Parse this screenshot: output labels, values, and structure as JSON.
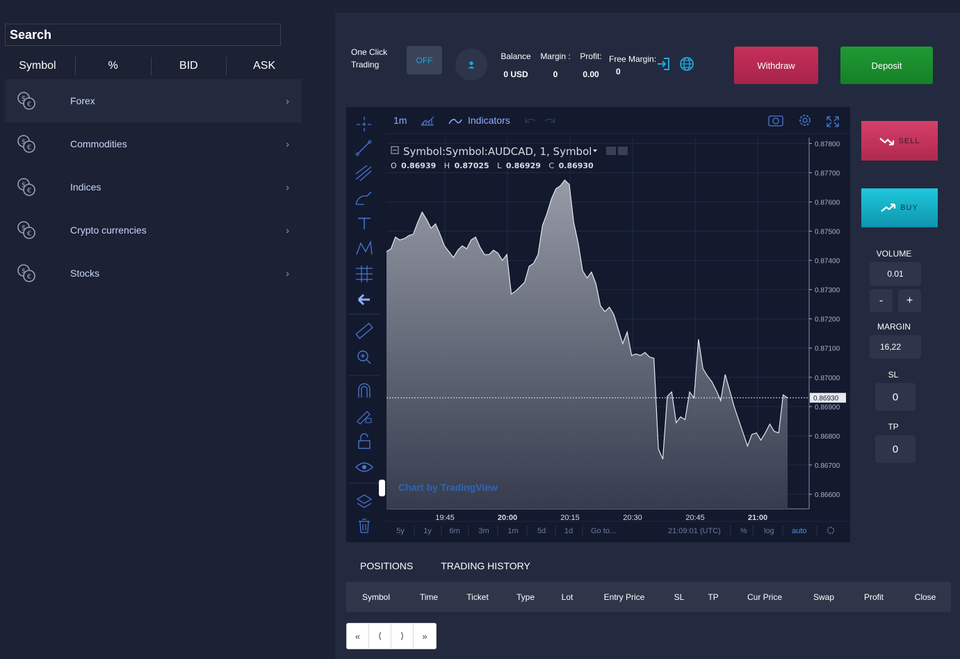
{
  "sidebar": {
    "search_placeholder": "Search",
    "columns": [
      "Symbol",
      "%",
      "BID",
      "ASK"
    ],
    "categories": [
      {
        "label": "Forex",
        "active": true
      },
      {
        "label": "Commodities",
        "active": false
      },
      {
        "label": "Indices",
        "active": false
      },
      {
        "label": "Crypto currencies",
        "active": false
      },
      {
        "label": "Stocks",
        "active": false
      }
    ],
    "chevron": "›"
  },
  "header": {
    "one_click_label": "One Click Trading",
    "toggle_label": "OFF",
    "balance_label": "Balance",
    "balance_value": "0 USD",
    "margin_label": "Margin :",
    "margin_value": "0",
    "profit_label": "Profit:",
    "profit_value": "0.00",
    "free_margin_label": "Free Margin:",
    "free_margin_value": "0",
    "withdraw_label": "Withdraw",
    "deposit_label": "Deposit"
  },
  "chart_toolbar": {
    "interval": "1m",
    "indicators_label": "Indicators"
  },
  "chart_legend": {
    "title": "Symbol:Symbol:AUDCAD, 1, Symbol",
    "o_label": "O",
    "o_value": "0.86939",
    "h_label": "H",
    "h_value": "0.87025",
    "l_label": "L",
    "l_value": "0.86929",
    "c_label": "C",
    "c_value": "0.86930",
    "watermark": "Chart by TradingView"
  },
  "chart_bottom": {
    "ranges": [
      "5y",
      "1y",
      "6m",
      "3m",
      "1m",
      "5d",
      "1d"
    ],
    "goto": "Go to...",
    "clock": "21:09:01 (UTC)",
    "percent": "%",
    "log": "log",
    "auto": "auto"
  },
  "chart_data": {
    "type": "area",
    "title": "Symbol:Symbol:AUDCAD, 1, Symbol",
    "x_ticks": [
      "19:45",
      "20:00",
      "20:15",
      "20:30",
      "20:45",
      "21:00"
    ],
    "y_ticks": [
      "0.87800",
      "0.87700",
      "0.87600",
      "0.87500",
      "0.87400",
      "0.87300",
      "0.87200",
      "0.87100",
      "0.87000",
      "0.86900",
      "0.86800",
      "0.86700",
      "0.86600"
    ],
    "ylim": [
      0.8655,
      0.8782
    ],
    "last_price": "0.86930",
    "last_price_value": 0.8693,
    "series": [
      {
        "values": [
          0.8743,
          0.8744,
          0.8748,
          0.8747,
          0.87475,
          0.87485,
          0.8749,
          0.8753,
          0.87565,
          0.8754,
          0.8751,
          0.87525,
          0.8749,
          0.8745,
          0.8743,
          0.8741,
          0.87435,
          0.8745,
          0.8744,
          0.8747,
          0.8748,
          0.87445,
          0.8742,
          0.8742,
          0.87435,
          0.87425,
          0.874,
          0.8742,
          0.87285,
          0.87295,
          0.8731,
          0.87325,
          0.8738,
          0.8739,
          0.8742,
          0.8752,
          0.8756,
          0.8761,
          0.87645,
          0.87655,
          0.87675,
          0.8766,
          0.8753,
          0.8746,
          0.87365,
          0.8734,
          0.8736,
          0.8732,
          0.87245,
          0.87225,
          0.8724,
          0.87215,
          0.87165,
          0.87115,
          0.87155,
          0.87075,
          0.8708,
          0.87075,
          0.87085,
          0.8707,
          0.87065,
          0.86755,
          0.8672,
          0.86935,
          0.8695,
          0.86845,
          0.86865,
          0.86855,
          0.8695,
          0.8693,
          0.8713,
          0.8703,
          0.87005,
          0.86985,
          0.86955,
          0.8692,
          0.8701,
          0.86955,
          0.869,
          0.86855,
          0.8681,
          0.86765,
          0.86805,
          0.8681,
          0.86785,
          0.8681,
          0.8684,
          0.86815,
          0.8681,
          0.8694,
          0.8693
        ]
      }
    ]
  },
  "trade_panel": {
    "sell_label": "SELL",
    "buy_label": "BUY",
    "volume_label": "VOLUME",
    "volume_value": "0.01",
    "minus_label": "-",
    "plus_label": "+",
    "margin_label": "MARGIN",
    "margin_value": "16,22",
    "sl_label": "SL",
    "sl_value": "0",
    "tp_label": "TP",
    "tp_value": "0"
  },
  "positions": {
    "tabs": [
      "POSITIONS",
      "TRADING HISTORY"
    ],
    "columns": [
      "Symbol",
      "Time",
      "Ticket",
      "Type",
      "Lot",
      "Entry Price",
      "SL",
      "TP",
      "Cur Price",
      "Swap",
      "Profit",
      "Close"
    ],
    "pager": [
      "«",
      "⟨",
      "⟩",
      "»"
    ]
  },
  "colors": {
    "sell": "#c5305a",
    "buy": "#14b1c8",
    "withdraw": "#b82a52",
    "deposit": "#1c8f2f",
    "chart_bg": "#131a2e",
    "accent": "#7fa0ff"
  }
}
